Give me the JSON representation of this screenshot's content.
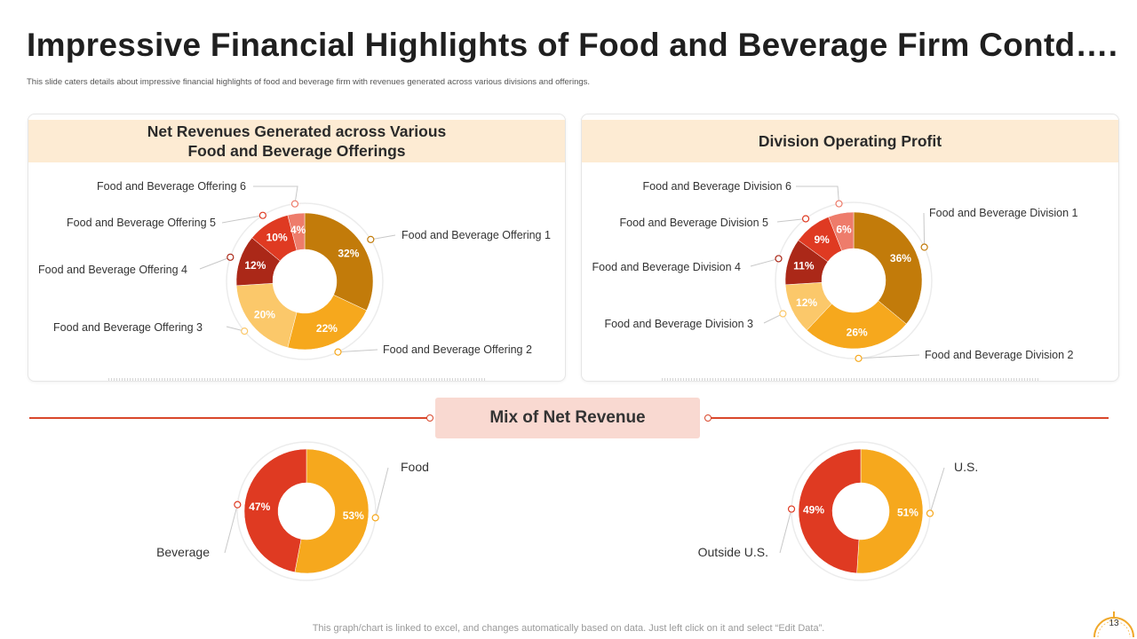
{
  "title": "Impressive Financial Highlights of Food and Beverage Firm Contd….",
  "subtitle": "This slide caters details about impressive financial highlights of food and beverage firm with revenues generated across various divisions and offerings.",
  "mix_title": "Mix of Net Revenue",
  "footnote": "This graph/chart is linked to excel,  and changes automatically based on data. Just left click on it and select “Edit Data”.",
  "page_number": "13",
  "colors": {
    "dark_gold": "#c27b0a",
    "orange": "#f6a81d",
    "light_orange": "#fbc86a",
    "dark_red": "#ab2818",
    "red": "#df3a22",
    "salmon": "#ee7c6b",
    "panel_header": "#fdebd3",
    "accent_line": "#d9472b"
  },
  "chart_data": [
    {
      "type": "pie",
      "title_lines": [
        "Net Revenues Generated across Various",
        "Food and Beverage Offerings"
      ],
      "categories": [
        "Food and Beverage Offering 1",
        "Food and Beverage Offering 2",
        "Food and Beverage Offering 3",
        "Food and Beverage Offering 4",
        "Food and  Beverage Offering 5",
        "Food and Beverage Offering 6"
      ],
      "values": [
        32,
        22,
        20,
        12,
        10,
        4
      ],
      "value_labels": [
        "32%",
        "22%",
        "20%",
        "12%",
        "10%",
        "4%"
      ],
      "colors": [
        "#c27b0a",
        "#f6a81d",
        "#fbc86a",
        "#ab2818",
        "#df3a22",
        "#ee7c6b"
      ],
      "label_colors": [
        "#ffffff",
        "#ffffff",
        "#ffffff",
        "#ffffff",
        "#ffffff",
        "#ffffff"
      ]
    },
    {
      "type": "pie",
      "title_lines": [
        "Division Operating Profit"
      ],
      "categories": [
        "Food and Beverage Division 1",
        "Food and Beverage Division 2",
        "Food and Beverage Division 3",
        "Food and Beverage Division 4",
        "Food and Beverage Division 5",
        "Food and Beverage Division 6"
      ],
      "values": [
        36,
        26,
        12,
        11,
        9,
        6
      ],
      "value_labels": [
        "36%",
        "26%",
        "12%",
        "11%",
        "9%",
        "6%"
      ],
      "colors": [
        "#c27b0a",
        "#f6a81d",
        "#fbc86a",
        "#ab2818",
        "#df3a22",
        "#ee7c6b"
      ],
      "label_colors": [
        "#ffffff",
        "#ffffff",
        "#ffffff",
        "#ffffff",
        "#ffffff",
        "#ffffff"
      ]
    },
    {
      "type": "pie",
      "title_lines": [],
      "categories": [
        "Food",
        "Beverage"
      ],
      "values": [
        53,
        47
      ],
      "value_labels": [
        "53%",
        "47%"
      ],
      "colors": [
        "#f6a81d",
        "#df3a22"
      ],
      "label_colors": [
        "#ffffff",
        "#ffffff"
      ]
    },
    {
      "type": "pie",
      "title_lines": [],
      "categories": [
        "U.S.",
        "Outside U.S."
      ],
      "values": [
        51,
        49
      ],
      "value_labels": [
        "51%",
        "49%"
      ],
      "colors": [
        "#f6a81d",
        "#df3a22"
      ],
      "label_colors": [
        "#ffffff",
        "#ffffff"
      ]
    }
  ]
}
